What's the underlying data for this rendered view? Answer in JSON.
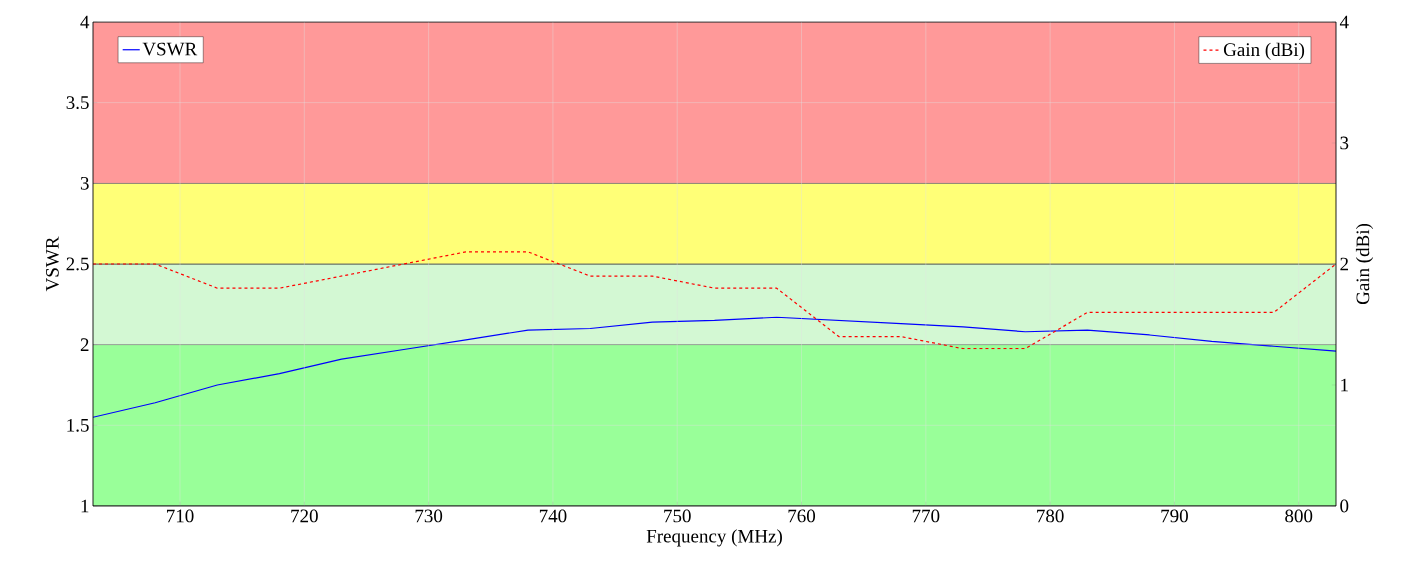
{
  "chart_data": {
    "type": "line",
    "xlabel": "Frequency (MHz)",
    "ylabel": "VSWR",
    "y2label": "Gain (dBi)",
    "x": [
      703,
      708,
      713,
      718,
      723,
      728,
      733,
      738,
      743,
      748,
      753,
      758,
      763,
      768,
      773,
      778,
      783,
      788,
      793,
      798,
      803
    ],
    "series": [
      {
        "name": "VSWR",
        "color": "#0000ff",
        "line_style": "solid",
        "values": [
          1.55,
          1.64,
          1.75,
          1.82,
          1.91,
          1.97,
          2.03,
          2.09,
          2.1,
          2.14,
          2.15,
          2.17,
          2.15,
          2.13,
          2.11,
          2.08,
          2.09,
          2.06,
          2.02,
          1.99,
          1.96
        ]
      },
      {
        "name": "Gain (dBi)",
        "color": "#ff0000",
        "line_style": "dashed",
        "axis": "y2",
        "values": [
          2.0,
          2.0,
          1.8,
          1.8,
          1.9,
          2.0,
          2.1,
          2.1,
          1.9,
          1.9,
          1.8,
          1.8,
          1.4,
          1.4,
          1.3,
          1.3,
          1.6,
          1.6,
          1.6,
          1.6,
          2.0
        ]
      }
    ],
    "xlim": [
      703,
      803
    ],
    "xticks": [
      710,
      720,
      730,
      740,
      750,
      760,
      770,
      780,
      790,
      800
    ],
    "ylim": [
      1,
      4
    ],
    "yticks": [
      1,
      1.5,
      2,
      2.5,
      3,
      3.5,
      4
    ],
    "y2lim": [
      0,
      4
    ],
    "y2ticks": [
      0,
      1,
      2,
      3,
      4
    ],
    "bands": [
      {
        "axis": "y",
        "from": 1,
        "to": 2,
        "color": "#99ff99"
      },
      {
        "axis": "y",
        "from": 2,
        "to": 2.5,
        "color": "#d3f8d3"
      },
      {
        "axis": "y",
        "from": 2.5,
        "to": 3,
        "color": "#ffff77"
      },
      {
        "axis": "y",
        "from": 3,
        "to": 4,
        "color": "#ff9999"
      }
    ],
    "grid": true,
    "legend": "top",
    "marker": "none"
  }
}
